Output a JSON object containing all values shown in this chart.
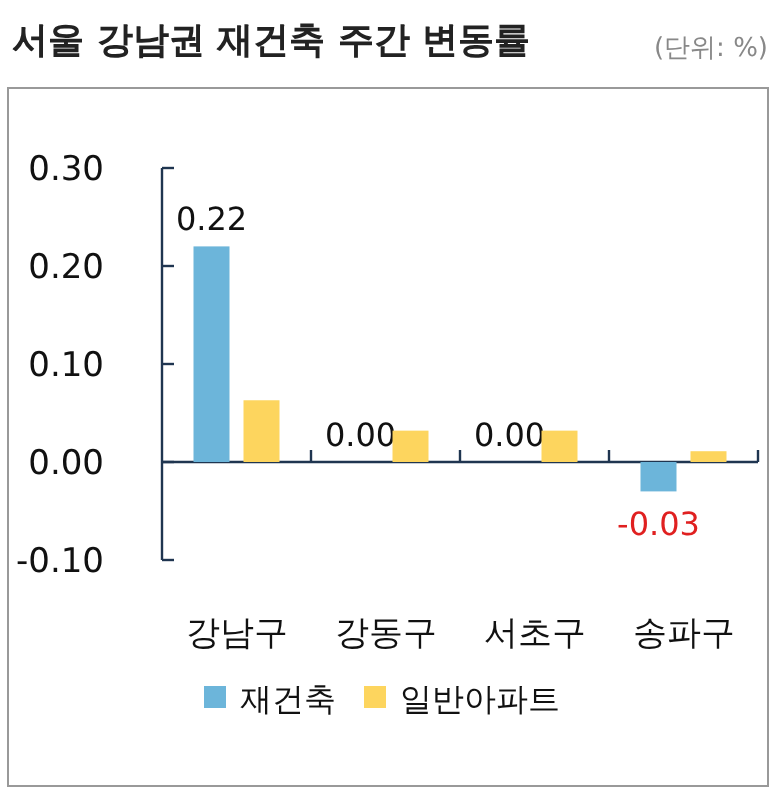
{
  "chart_data": {
    "type": "bar",
    "title": "서울 강남권 재건축 주간 변동률",
    "annotations": [
      "(단위: %)"
    ],
    "categories": [
      "강남구",
      "강동구",
      "서초구",
      "송파구"
    ],
    "series": [
      {
        "name": "재건축",
        "color": "#6cb5da",
        "values": [
          0.22,
          0.0,
          0.0,
          -0.03
        ],
        "value_labels": [
          "0.22",
          "0.00",
          "0.00",
          "-0.03"
        ]
      },
      {
        "name": "일반아파트",
        "color": "#fdd55e",
        "values": [
          0.063,
          0.032,
          0.032,
          0.011
        ]
      }
    ],
    "ylim": [
      -0.1,
      0.3
    ],
    "yticks": [
      {
        "value": -0.1,
        "label": "-0.10"
      },
      {
        "value": 0,
        "label": "0.00"
      },
      {
        "value": 0.1,
        "label": "0.10"
      },
      {
        "value": 0.2,
        "label": "0.20"
      },
      {
        "value": 0.3,
        "label": "0.30"
      }
    ],
    "grid": false,
    "legend": "bottom"
  }
}
